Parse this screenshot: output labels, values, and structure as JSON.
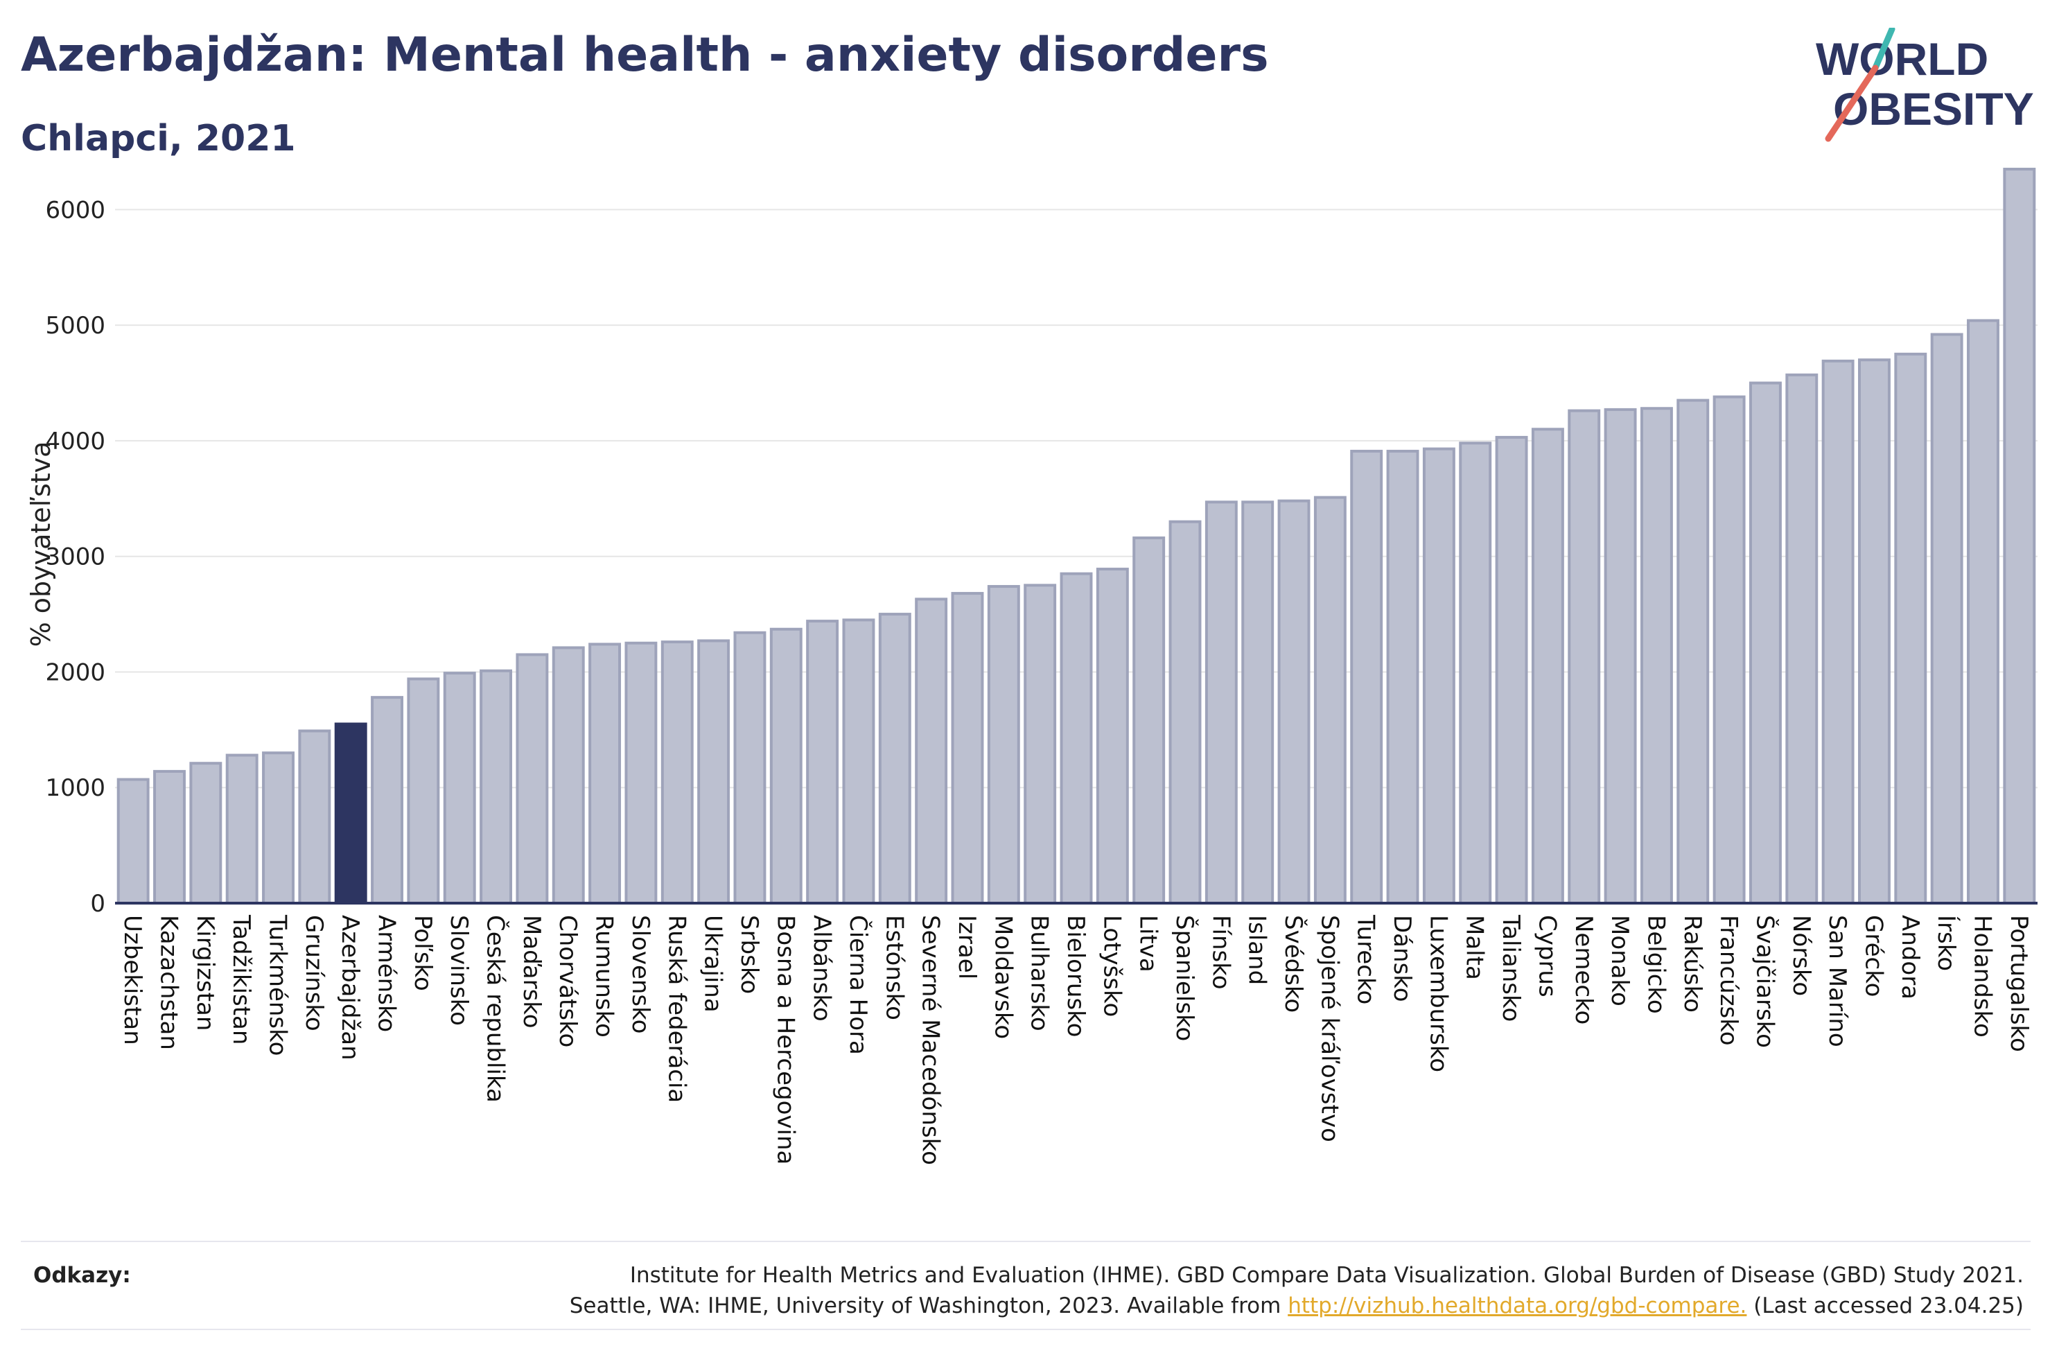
{
  "header": {
    "title": "Azerbajdžan: Mental health - anxiety disorders",
    "subtitle": "Chlapci, 2021"
  },
  "logo": {
    "line1": "WORLD",
    "line2": "OBESITY"
  },
  "references": {
    "label": "Odkazy:",
    "line1": "Institute for Health Metrics and Evaluation (IHME). GBD Compare Data Visualization. Global Burden of Disease (GBD) Study 2021.",
    "line2_prefix": "Seattle, WA: IHME, University of Washington, 2023. Available from ",
    "link": "http://vizhub.healthdata.org/gbd-compare.",
    "line2_suffix": " (Last accessed 23.04.25)"
  },
  "chart_data": {
    "type": "bar",
    "ylabel": "% obyvateľstva",
    "ylim": [
      0,
      6500
    ],
    "yticks": [
      0,
      1000,
      2000,
      3000,
      4000,
      5000,
      6000
    ],
    "grid": true,
    "highlight": "Azerbajdžan",
    "colors": {
      "bar": "#bcc0d0",
      "bar_edge": "#9ea3ba",
      "highlight": "#2d3561",
      "axis": "#2d3561",
      "grid": "#e6e6e6"
    },
    "categories": [
      "Uzbekistan",
      "Kazachstan",
      "Kirgizstan",
      "Tadžikistan",
      "Turkménsko",
      "Gruzínsko",
      "Azerbajdžan",
      "Arménsko",
      "Poľsko",
      "Slovinsko",
      "Česká republika",
      "Maďarsko",
      "Chorvátsko",
      "Rumunsko",
      "Slovensko",
      "Ruská federácia",
      "Ukrajina",
      "Srbsko",
      "Bosna a Hercegovina",
      "Albánsko",
      "Čierna Hora",
      "Estónsko",
      "Severné Macedónsko",
      "Izrael",
      "Moldavsko",
      "Bulharsko",
      "Bielorusko",
      "Lotyšsko",
      "Litva",
      "Španielsko",
      "Fínsko",
      "Island",
      "Švédsko",
      "Spojené kráľovstvo",
      "Turecko",
      "Dánsko",
      "Luxembursko",
      "Malta",
      "Taliansko",
      "Cyprus",
      "Nemecko",
      "Monako",
      "Belgicko",
      "Rakúsko",
      "Francúzsko",
      "Švajčiarsko",
      "Nórsko",
      "San Maríno",
      "Grécko",
      "Andora",
      "Írsko",
      "Holandsko",
      "Portugalsko"
    ],
    "values": [
      1070,
      1140,
      1210,
      1280,
      1300,
      1490,
      1550,
      1780,
      1940,
      1990,
      2010,
      2150,
      2210,
      2240,
      2250,
      2260,
      2270,
      2340,
      2370,
      2440,
      2450,
      2500,
      2630,
      2680,
      2740,
      2750,
      2850,
      2890,
      3160,
      3300,
      3470,
      3470,
      3480,
      3510,
      3910,
      3910,
      3930,
      3980,
      4030,
      4100,
      4260,
      4270,
      4280,
      4350,
      4380,
      4500,
      4570,
      4690,
      4700,
      4750,
      4920,
      5040,
      6350
    ]
  }
}
